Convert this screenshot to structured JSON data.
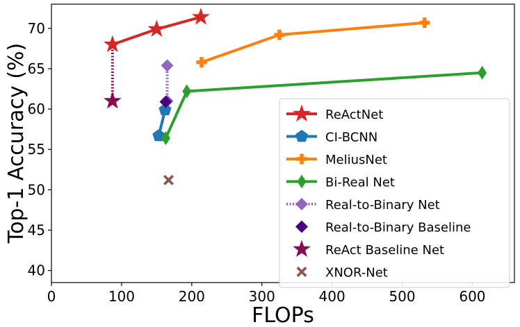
{
  "chart_data": {
    "type": "line",
    "title": "",
    "xlabel": "FLOPs",
    "ylabel": "Top-1 Accuracy (%)",
    "xlim": [
      0,
      660
    ],
    "ylim": [
      38.5,
      73
    ],
    "xticks": [
      0,
      100,
      200,
      300,
      400,
      500,
      600
    ],
    "yticks": [
      40,
      45,
      50,
      55,
      60,
      65,
      70
    ],
    "grid": false,
    "legend_position": "lower-right",
    "series": [
      {
        "name": "ReActNet",
        "color": "#d62728",
        "marker": "star",
        "line": "solid",
        "x": [
          87,
          150,
          213
        ],
        "y": [
          68.0,
          69.9,
          71.4
        ]
      },
      {
        "name": "CI-BCNN",
        "color": "#1f77b4",
        "marker": "pentagon",
        "line": "solid",
        "x": [
          153,
          162
        ],
        "y": [
          56.7,
          59.9
        ]
      },
      {
        "name": "MeliusNet",
        "color": "#ff7f0e",
        "marker": "plus",
        "line": "solid",
        "x": [
          214,
          325,
          532
        ],
        "y": [
          65.8,
          69.2,
          70.7
        ]
      },
      {
        "name": "Bi-Real Net",
        "color": "#2ca02c",
        "marker": "thin-diamond",
        "line": "solid",
        "x": [
          163,
          193,
          614
        ],
        "y": [
          56.4,
          62.2,
          64.5
        ]
      },
      {
        "name": "Real-to-Binary Net",
        "color": "#9467bd",
        "marker": "diamond",
        "line": "dotted",
        "x": [
          165,
          165
        ],
        "y": [
          61.0,
          65.4
        ]
      },
      {
        "name": "Real-to-Binary Baseline",
        "color": "#4b0082",
        "marker": "diamond",
        "line": "none",
        "x": [
          163
        ],
        "y": [
          60.9
        ]
      },
      {
        "name": "ReAct Baseline Net",
        "color": "#8b0a50",
        "marker": "star",
        "line": "none",
        "x": [
          87
        ],
        "y": [
          61.0
        ]
      },
      {
        "name": "XNOR-Net",
        "color": "#8c564b",
        "marker": "x",
        "line": "none",
        "x": [
          167
        ],
        "y": [
          51.2
        ]
      }
    ],
    "connector": {
      "color": "#8b0a50",
      "line": "dotted",
      "x": [
        87,
        87
      ],
      "y": [
        61.0,
        68.0
      ]
    }
  }
}
